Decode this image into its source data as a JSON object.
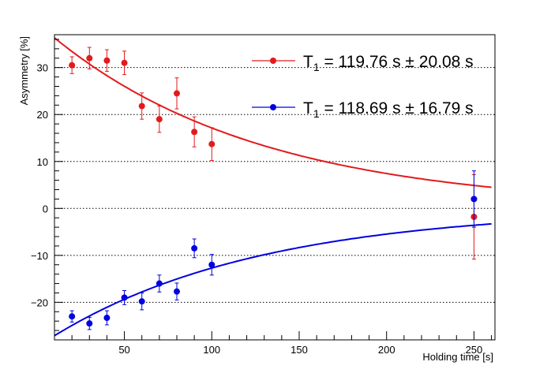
{
  "chart_data": {
    "type": "scatter",
    "title": "",
    "xlabel": "Holding time [s]",
    "ylabel": "Asymmetry [%]",
    "xlim": [
      10,
      262
    ],
    "ylim": [
      -28,
      37
    ],
    "x_ticks": [
      50,
      100,
      150,
      200,
      250
    ],
    "x_tick_labels": [
      "50",
      "100",
      "150",
      "200",
      "250"
    ],
    "y_ticks": [
      -20,
      -10,
      0,
      10,
      20,
      30
    ],
    "y_tick_labels": [
      "−20",
      "−10",
      "0",
      "10",
      "20",
      "30"
    ],
    "grid": "horizontal dotted at y ticks",
    "legend_position": "top-right",
    "series": [
      {
        "name": "T1 = 119.76 s ± 20.08 s",
        "legend": {
          "main": "T",
          "sub": "1",
          "rest": " = 119.76 s ± 20.08 s"
        },
        "color": "#e31a1c",
        "points": [
          {
            "x": 20,
            "y": 30.5,
            "err": 1.8
          },
          {
            "x": 30,
            "y": 32.0,
            "err": 2.3
          },
          {
            "x": 40,
            "y": 31.5,
            "err": 2.3
          },
          {
            "x": 50,
            "y": 31.0,
            "err": 2.5
          },
          {
            "x": 60,
            "y": 21.8,
            "err": 2.8
          },
          {
            "x": 70,
            "y": 19.0,
            "err": 2.8
          },
          {
            "x": 80,
            "y": 24.5,
            "err": 3.3
          },
          {
            "x": 90,
            "y": 16.3,
            "err": 3.2
          },
          {
            "x": 100,
            "y": 13.7,
            "err": 3.5
          },
          {
            "x": 250,
            "y": -1.8,
            "err": 9.0
          }
        ],
        "fit": {
          "amplitude": 39.5,
          "tau": 119.76,
          "x_start": 10,
          "x_end": 260
        }
      },
      {
        "name": "T1 = 118.69 s ± 16.79 s",
        "legend": {
          "main": "T",
          "sub": "1",
          "rest": " = 118.69 s ± 16.79 s"
        },
        "color": "#0000e0",
        "points": [
          {
            "x": 20,
            "y": -23.0,
            "err": 1.2
          },
          {
            "x": 30,
            "y": -24.5,
            "err": 1.3
          },
          {
            "x": 40,
            "y": -23.3,
            "err": 1.5
          },
          {
            "x": 50,
            "y": -19.0,
            "err": 1.5
          },
          {
            "x": 60,
            "y": -19.8,
            "err": 1.8
          },
          {
            "x": 70,
            "y": -16.0,
            "err": 1.8
          },
          {
            "x": 80,
            "y": -17.7,
            "err": 1.8
          },
          {
            "x": 90,
            "y": -8.5,
            "err": 2.0
          },
          {
            "x": 100,
            "y": -12.0,
            "err": 2.2
          },
          {
            "x": 250,
            "y": 2.0,
            "err": 6.0
          }
        ],
        "fit": {
          "amplitude": -29.5,
          "tau": 118.69,
          "x_start": 10,
          "x_end": 260
        }
      }
    ]
  }
}
